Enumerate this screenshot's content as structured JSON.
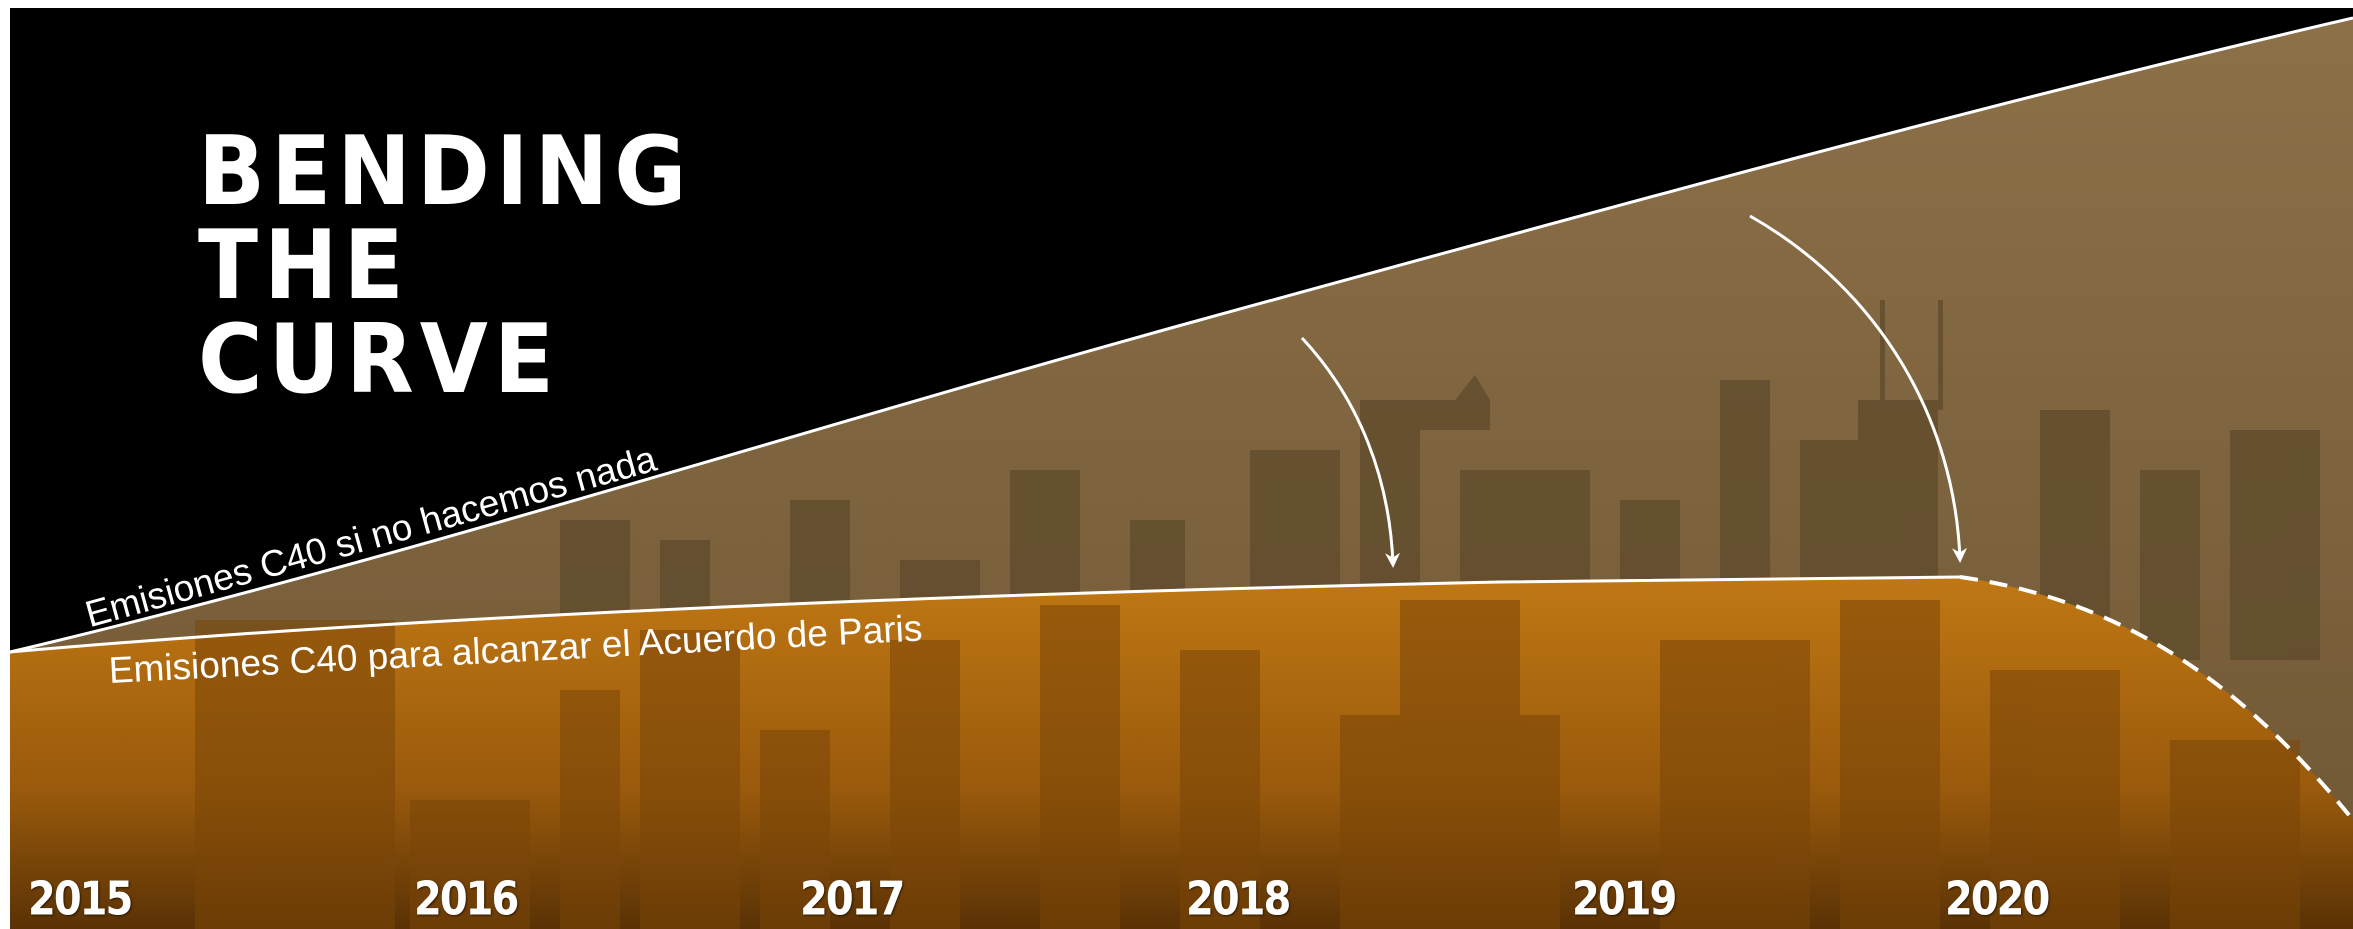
{
  "title_lines": [
    "BENDING",
    "THE",
    "CURVE"
  ],
  "labels": {
    "do_nothing": "Emisiones C40 si no hacemos nada",
    "paris": "Emisiones C40 para alcanzar el Acuerdo de Paris"
  },
  "years": [
    "2015",
    "2016",
    "2017",
    "2018",
    "2019",
    "2020"
  ],
  "colors": {
    "background": "#000000",
    "upper_haze": "#7d6238",
    "lower_orange": "#b56d0f",
    "curve": "#ffffff"
  }
}
